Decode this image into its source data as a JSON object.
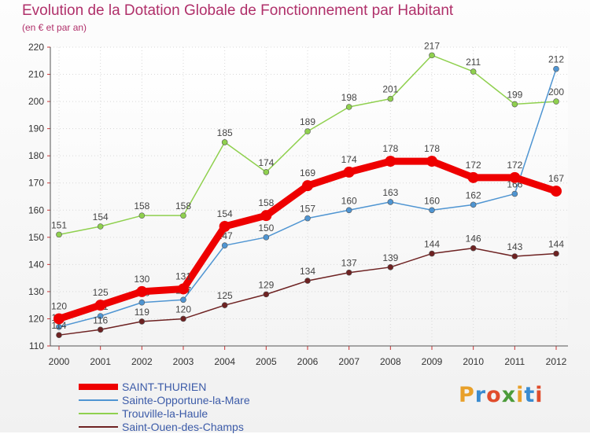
{
  "title": "Evolution de la Dotation Globale de Fonctionnement par Habitant",
  "subtitle": "(en € et par an)",
  "logo": {
    "text": "Proxiti",
    "colors": [
      "#e8a02a",
      "#3a8bd0",
      "#e04c2c",
      "#4c9b3a",
      "#e8a02a",
      "#3a8bd0",
      "#e04c2c"
    ]
  },
  "chart_data": {
    "type": "line",
    "x": [
      "2000",
      "2001",
      "2002",
      "2003",
      "2004",
      "2005",
      "2006",
      "2007",
      "2008",
      "2009",
      "2010",
      "2011",
      "2012"
    ],
    "ylim": [
      110,
      220
    ],
    "yticks": [
      110,
      120,
      130,
      140,
      150,
      160,
      170,
      180,
      190,
      200,
      210,
      220
    ],
    "grid": true,
    "legend": "bottom-left",
    "series": [
      {
        "name": "SAINT-THURIEN",
        "color": "#ee0000",
        "values": [
          120,
          125,
          130,
          131,
          154,
          158,
          169,
          174,
          178,
          178,
          172,
          172,
          167
        ],
        "labels": [
          "120",
          "125",
          "130",
          "131",
          "154",
          "158",
          "169",
          "174",
          "178",
          "178",
          "172",
          "172",
          "167"
        ]
      },
      {
        "name": "Sainte-Opportune-la-Mare",
        "color": "#4f95d2",
        "values": [
          117,
          121,
          126,
          127,
          147,
          150,
          157,
          160,
          163,
          160,
          162,
          166,
          212
        ],
        "labels": [
          "117",
          "121",
          "126",
          "127",
          "147",
          "150",
          "157",
          "160",
          "163",
          "160",
          "162",
          "166",
          "212"
        ]
      },
      {
        "name": "Trouville-la-Haule",
        "color": "#8fd04e",
        "values": [
          151,
          154,
          158,
          158,
          185,
          174,
          189,
          198,
          201,
          217,
          211,
          199,
          200
        ],
        "labels": [
          "151",
          "154",
          "158",
          "158",
          "185",
          "174",
          "189",
          "198",
          "201",
          "217",
          "211",
          "199",
          "200"
        ]
      },
      {
        "name": "Saint-Ouen-des-Champs",
        "color": "#6e2222",
        "values": [
          114,
          116,
          119,
          120,
          125,
          129,
          134,
          137,
          139,
          144,
          146,
          143,
          144
        ],
        "labels": [
          "114",
          "116",
          "119",
          "120",
          "125",
          "129",
          "134",
          "137",
          "139",
          "144",
          "146",
          "143",
          "144"
        ]
      }
    ]
  }
}
